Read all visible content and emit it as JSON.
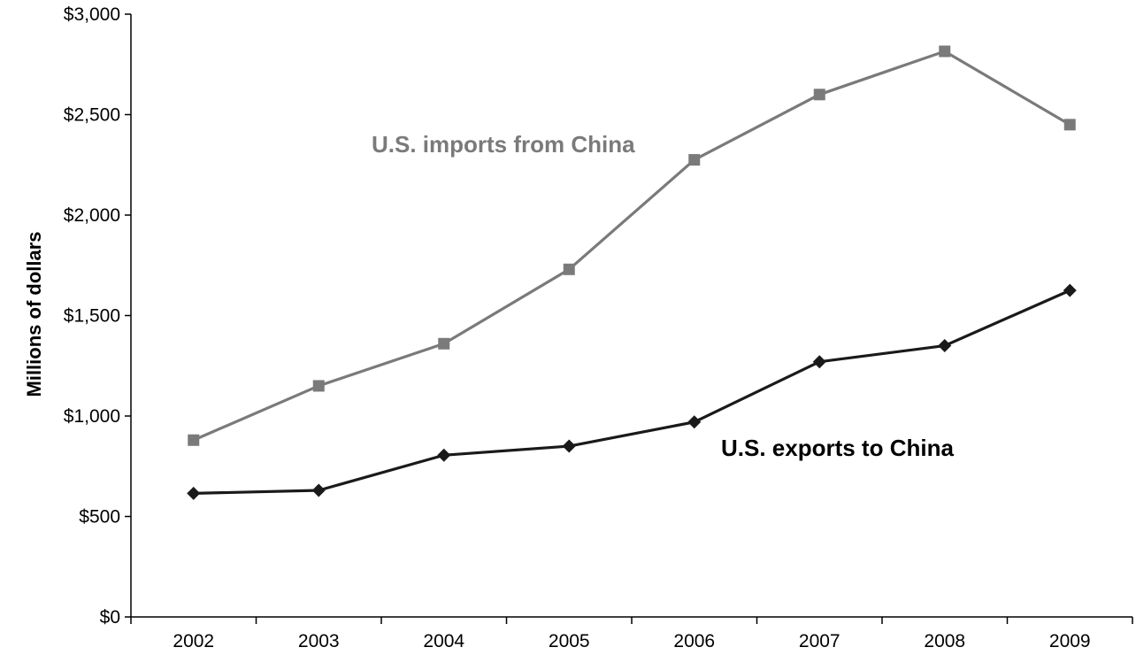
{
  "chart_data": {
    "type": "line",
    "title": "",
    "xlabel": "",
    "ylabel": "Millions of dollars",
    "categories": [
      "2002",
      "2003",
      "2004",
      "2005",
      "2006",
      "2007",
      "2008",
      "2009"
    ],
    "ylim": [
      0,
      3000
    ],
    "yticks": [
      {
        "value": 0,
        "label": "$0"
      },
      {
        "value": 500,
        "label": "$500"
      },
      {
        "value": 1000,
        "label": "$1,000"
      },
      {
        "value": 1500,
        "label": "$1,500"
      },
      {
        "value": 2000,
        "label": "$2,000"
      },
      {
        "value": 2500,
        "label": "$2,500"
      },
      {
        "value": 3000,
        "label": "$3,000"
      }
    ],
    "grid": false,
    "series": [
      {
        "name": "U.S. imports from China",
        "marker": "square",
        "color": "#7a7a7a",
        "values": [
          880,
          1150,
          1360,
          1730,
          2275,
          2600,
          2815,
          2450
        ]
      },
      {
        "name": "U.S. exports to China",
        "marker": "diamond",
        "color": "#1a1a1a",
        "values": [
          615,
          630,
          805,
          850,
          970,
          1270,
          1350,
          1625
        ]
      }
    ]
  }
}
